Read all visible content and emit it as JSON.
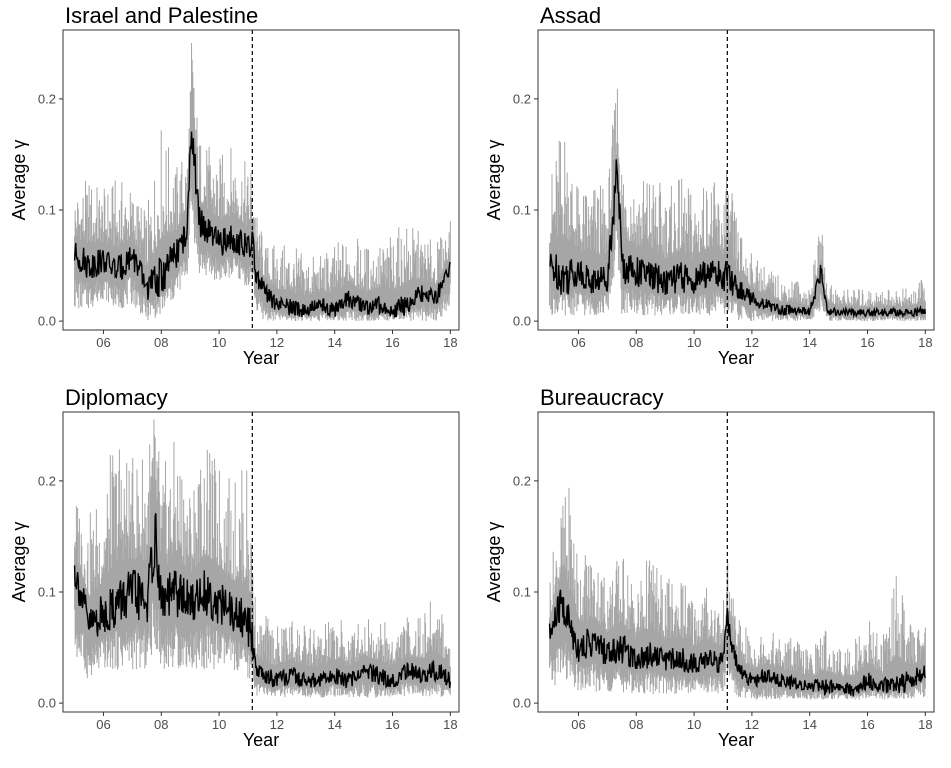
{
  "figure": {
    "xlabel": "Year",
    "ylabel_prefix": "Average",
    "ylabel_symbol": "γ",
    "x_tick_labels": [
      "06",
      "08",
      "10",
      "12",
      "14",
      "16",
      "18"
    ],
    "y_tick_labels": [
      "0.0",
      "0.1",
      "0.2"
    ]
  },
  "colors": {
    "band": "#a6a6a6",
    "mean_line": "#000000",
    "vline": "#000000",
    "frame": "#333333"
  },
  "chart_data": [
    {
      "type": "line",
      "title": "Israel and Palestine",
      "xlabel": "Year",
      "ylabel": "Average γ",
      "xlim": [
        2004.6,
        2018.3
      ],
      "ylim": [
        -0.008,
        0.262
      ],
      "x_ticks": [
        2006,
        2008,
        2010,
        2012,
        2014,
        2016,
        2018
      ],
      "y_ticks": [
        0.0,
        0.1,
        0.2
      ],
      "vline_x": 2011.15,
      "grid": false,
      "x": [
        2005.0,
        2005.5,
        2006.0,
        2006.5,
        2007.0,
        2007.5,
        2008.0,
        2008.5,
        2008.9,
        2009.05,
        2009.3,
        2009.6,
        2010.0,
        2010.5,
        2011.0,
        2011.15,
        2011.3,
        2011.6,
        2012.0,
        2012.5,
        2013.0,
        2013.5,
        2014.0,
        2014.5,
        2015.0,
        2015.5,
        2016.0,
        2016.5,
        2017.0,
        2017.5,
        2018.0
      ],
      "series": [
        {
          "role": "mean",
          "values": [
            0.06,
            0.05,
            0.055,
            0.045,
            0.06,
            0.03,
            0.04,
            0.06,
            0.08,
            0.18,
            0.09,
            0.08,
            0.07,
            0.075,
            0.065,
            0.07,
            0.04,
            0.025,
            0.015,
            0.012,
            0.01,
            0.015,
            0.01,
            0.02,
            0.012,
            0.015,
            0.01,
            0.015,
            0.025,
            0.02,
            0.05
          ]
        },
        {
          "role": "lower",
          "values": [
            0.01,
            0.01,
            0.02,
            0.01,
            0.015,
            0.0,
            0.005,
            0.02,
            0.04,
            0.09,
            0.04,
            0.04,
            0.035,
            0.04,
            0.03,
            0.035,
            0.005,
            0.0,
            0.0,
            0.0,
            0.0,
            0.0,
            0.0,
            0.0,
            0.0,
            0.0,
            0.0,
            0.0,
            0.0,
            0.0,
            0.01
          ]
        },
        {
          "role": "upper",
          "values": [
            0.12,
            0.13,
            0.12,
            0.13,
            0.12,
            0.1,
            0.18,
            0.14,
            0.16,
            0.26,
            0.17,
            0.16,
            0.15,
            0.16,
            0.14,
            0.15,
            0.1,
            0.07,
            0.07,
            0.07,
            0.06,
            0.06,
            0.07,
            0.08,
            0.07,
            0.07,
            0.08,
            0.09,
            0.08,
            0.07,
            0.09
          ]
        }
      ]
    },
    {
      "type": "line",
      "title": "Assad",
      "xlabel": "Year",
      "ylabel": "Average γ",
      "xlim": [
        2004.6,
        2018.3
      ],
      "ylim": [
        -0.008,
        0.262
      ],
      "x_ticks": [
        2006,
        2008,
        2010,
        2012,
        2014,
        2016,
        2018
      ],
      "y_ticks": [
        0.0,
        0.1,
        0.2
      ],
      "vline_x": 2011.15,
      "grid": false,
      "x": [
        2005.0,
        2005.5,
        2006.0,
        2006.5,
        2007.0,
        2007.35,
        2007.5,
        2008.0,
        2008.5,
        2009.0,
        2009.5,
        2010.0,
        2010.5,
        2011.0,
        2011.15,
        2011.5,
        2012.0,
        2012.5,
        2013.0,
        2013.5,
        2014.0,
        2014.4,
        2014.6,
        2015.0,
        2015.5,
        2016.0,
        2016.5,
        2017.0,
        2017.5,
        2018.0
      ],
      "series": [
        {
          "role": "mean",
          "values": [
            0.05,
            0.04,
            0.045,
            0.035,
            0.04,
            0.14,
            0.05,
            0.045,
            0.04,
            0.035,
            0.04,
            0.035,
            0.045,
            0.04,
            0.04,
            0.03,
            0.02,
            0.015,
            0.01,
            0.01,
            0.008,
            0.045,
            0.01,
            0.008,
            0.008,
            0.007,
            0.008,
            0.008,
            0.007,
            0.01
          ]
        },
        {
          "role": "lower",
          "values": [
            0.005,
            0.005,
            0.005,
            0.005,
            0.005,
            0.05,
            0.005,
            0.005,
            0.005,
            0.005,
            0.005,
            0.005,
            0.005,
            0.005,
            0.005,
            0.0,
            0.0,
            0.0,
            0.0,
            0.0,
            0.0,
            0.01,
            0.0,
            0.0,
            0.0,
            0.0,
            0.0,
            0.0,
            0.0,
            0.0
          ]
        },
        {
          "role": "upper",
          "values": [
            0.13,
            0.19,
            0.12,
            0.13,
            0.12,
            0.23,
            0.16,
            0.13,
            0.14,
            0.12,
            0.13,
            0.12,
            0.13,
            0.12,
            0.14,
            0.09,
            0.06,
            0.05,
            0.04,
            0.04,
            0.03,
            0.09,
            0.04,
            0.03,
            0.03,
            0.03,
            0.03,
            0.03,
            0.03,
            0.04
          ]
        }
      ]
    },
    {
      "type": "line",
      "title": "Diplomacy",
      "xlabel": "Year",
      "ylabel": "Average γ",
      "xlim": [
        2004.6,
        2018.3
      ],
      "ylim": [
        -0.008,
        0.262
      ],
      "x_ticks": [
        2006,
        2008,
        2010,
        2012,
        2014,
        2016,
        2018
      ],
      "y_ticks": [
        0.0,
        0.1,
        0.2
      ],
      "vline_x": 2011.15,
      "grid": false,
      "x": [
        2005.0,
        2005.5,
        2006.0,
        2006.5,
        2007.0,
        2007.5,
        2007.8,
        2008.0,
        2008.5,
        2009.0,
        2009.5,
        2010.0,
        2010.5,
        2011.0,
        2011.15,
        2011.3,
        2011.6,
        2012.0,
        2012.5,
        2013.0,
        2013.5,
        2014.0,
        2014.5,
        2015.0,
        2015.5,
        2016.0,
        2016.5,
        2017.0,
        2017.5,
        2018.0
      ],
      "series": [
        {
          "role": "mean",
          "values": [
            0.12,
            0.07,
            0.08,
            0.09,
            0.1,
            0.09,
            0.15,
            0.09,
            0.1,
            0.09,
            0.1,
            0.09,
            0.08,
            0.07,
            0.06,
            0.03,
            0.025,
            0.02,
            0.025,
            0.02,
            0.02,
            0.025,
            0.02,
            0.03,
            0.025,
            0.02,
            0.03,
            0.025,
            0.03,
            0.02
          ]
        },
        {
          "role": "lower",
          "values": [
            0.04,
            0.02,
            0.03,
            0.03,
            0.03,
            0.03,
            0.05,
            0.03,
            0.03,
            0.03,
            0.03,
            0.03,
            0.03,
            0.02,
            0.02,
            0.005,
            0.005,
            0.005,
            0.005,
            0.005,
            0.005,
            0.005,
            0.005,
            0.005,
            0.005,
            0.005,
            0.005,
            0.005,
            0.005,
            0.005
          ]
        },
        {
          "role": "upper",
          "values": [
            0.19,
            0.17,
            0.2,
            0.25,
            0.22,
            0.24,
            0.27,
            0.21,
            0.24,
            0.2,
            0.23,
            0.22,
            0.2,
            0.22,
            0.16,
            0.07,
            0.08,
            0.07,
            0.08,
            0.07,
            0.07,
            0.08,
            0.07,
            0.08,
            0.08,
            0.07,
            0.08,
            0.08,
            0.1,
            0.07
          ]
        }
      ]
    },
    {
      "type": "line",
      "title": "Bureaucracy",
      "xlabel": "Year",
      "ylabel": "Average γ",
      "xlim": [
        2004.6,
        2018.3
      ],
      "ylim": [
        -0.008,
        0.262
      ],
      "x_ticks": [
        2006,
        2008,
        2010,
        2012,
        2014,
        2016,
        2018
      ],
      "y_ticks": [
        0.0,
        0.1,
        0.2
      ],
      "vline_x": 2011.15,
      "grid": false,
      "x": [
        2005.0,
        2005.4,
        2005.7,
        2006.0,
        2006.5,
        2007.0,
        2007.5,
        2008.0,
        2008.5,
        2009.0,
        2009.5,
        2010.0,
        2010.5,
        2011.0,
        2011.15,
        2011.5,
        2012.0,
        2012.5,
        2013.0,
        2013.5,
        2014.0,
        2014.5,
        2015.0,
        2015.5,
        2016.0,
        2016.5,
        2017.0,
        2017.5,
        2018.0
      ],
      "series": [
        {
          "role": "mean",
          "values": [
            0.06,
            0.09,
            0.07,
            0.05,
            0.055,
            0.045,
            0.05,
            0.04,
            0.045,
            0.04,
            0.04,
            0.035,
            0.04,
            0.035,
            0.075,
            0.03,
            0.02,
            0.025,
            0.02,
            0.018,
            0.015,
            0.015,
            0.015,
            0.012,
            0.02,
            0.015,
            0.018,
            0.02,
            0.03
          ]
        },
        {
          "role": "lower",
          "values": [
            0.01,
            0.02,
            0.015,
            0.01,
            0.01,
            0.01,
            0.01,
            0.008,
            0.008,
            0.008,
            0.008,
            0.008,
            0.008,
            0.008,
            0.02,
            0.005,
            0.003,
            0.003,
            0.003,
            0.003,
            0.003,
            0.003,
            0.003,
            0.003,
            0.003,
            0.003,
            0.003,
            0.003,
            0.005
          ]
        },
        {
          "role": "upper",
          "values": [
            0.12,
            0.18,
            0.2,
            0.14,
            0.14,
            0.12,
            0.14,
            0.11,
            0.14,
            0.11,
            0.12,
            0.1,
            0.11,
            0.09,
            0.13,
            0.08,
            0.06,
            0.07,
            0.06,
            0.06,
            0.05,
            0.07,
            0.05,
            0.06,
            0.08,
            0.06,
            0.12,
            0.07,
            0.08
          ]
        }
      ]
    }
  ]
}
